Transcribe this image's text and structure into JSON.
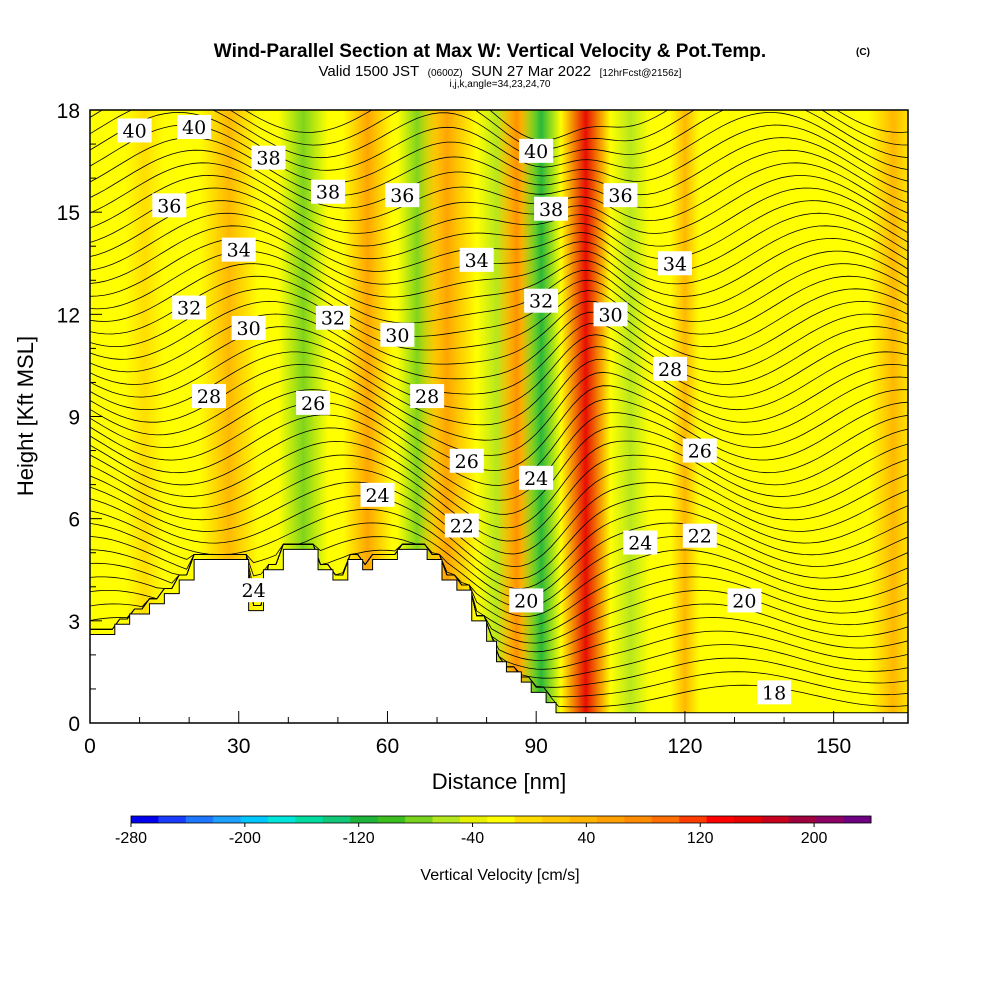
{
  "chart_data": {
    "type": "heatmap",
    "title": "Wind-Parallel Section at Max W: Vertical Velocity & Pot.Temp.",
    "title_mark": "(C)",
    "subtitle_pre": "Valid 1500 JST",
    "subtitle_utc": "(0600Z)",
    "subtitle_post": "SUN 27 Mar 2022",
    "subtitle_fcst": "[12hrFcst@2156z]",
    "subtitle2": "i,j,k,angle=34,23,24,70",
    "xlabel": "Distance [nm]",
    "ylabel": "Height [Kft MSL]",
    "xlim": [
      0,
      165
    ],
    "ylim": [
      0,
      18
    ],
    "x_ticks": [
      0,
      30,
      60,
      90,
      120,
      150
    ],
    "y_ticks": [
      0,
      3,
      6,
      9,
      12,
      15,
      18
    ],
    "colorbar": {
      "label": "Vertical Velocity [cm/s]",
      "range": [
        -280,
        240
      ],
      "tick_values": [
        -280,
        -200,
        -120,
        -40,
        40,
        120,
        200
      ],
      "tick_labels": [
        "-280",
        "-200",
        "-120",
        "-40",
        "40",
        "120",
        "200"
      ],
      "colors": [
        "#0000f0",
        "#1a3cff",
        "#1e78ff",
        "#1ea0ff",
        "#00c8ff",
        "#00e6dc",
        "#00dca0",
        "#10c878",
        "#1eb43c",
        "#3cbe1e",
        "#78d21e",
        "#b4e61e",
        "#e6f000",
        "#ffff00",
        "#ffdc00",
        "#ffc800",
        "#ffb400",
        "#ffa000",
        "#ff8c00",
        "#ff6e00",
        "#ff3c00",
        "#ff0000",
        "#e60000",
        "#c8001e",
        "#a0003c",
        "#8c0064",
        "#6e0082"
      ]
    },
    "terrain": [
      [
        0,
        2.6
      ],
      [
        5,
        2.6
      ],
      [
        5,
        2.9
      ],
      [
        8,
        2.9
      ],
      [
        8,
        3.2
      ],
      [
        12,
        3.2
      ],
      [
        12,
        3.5
      ],
      [
        15,
        3.5
      ],
      [
        15,
        3.8
      ],
      [
        18,
        3.8
      ],
      [
        18,
        4.2
      ],
      [
        21,
        4.2
      ],
      [
        21,
        4.8
      ],
      [
        32,
        4.8
      ],
      [
        32,
        3.3
      ],
      [
        35,
        3.3
      ],
      [
        35,
        4.5
      ],
      [
        39,
        4.5
      ],
      [
        39,
        5.1
      ],
      [
        46,
        5.1
      ],
      [
        46,
        4.5
      ],
      [
        49,
        4.5
      ],
      [
        49,
        4.2
      ],
      [
        52,
        4.2
      ],
      [
        52,
        4.8
      ],
      [
        55,
        4.8
      ],
      [
        55,
        4.5
      ],
      [
        57,
        4.5
      ],
      [
        57,
        4.8
      ],
      [
        62,
        4.8
      ],
      [
        62,
        5.1
      ],
      [
        68,
        5.1
      ],
      [
        68,
        4.8
      ],
      [
        71,
        4.8
      ],
      [
        71,
        4.2
      ],
      [
        74,
        4.2
      ],
      [
        74,
        3.9
      ],
      [
        77,
        3.9
      ],
      [
        77,
        3.0
      ],
      [
        80,
        3.0
      ],
      [
        80,
        2.4
      ],
      [
        82,
        2.4
      ],
      [
        82,
        1.8
      ],
      [
        84,
        1.8
      ],
      [
        84,
        1.5
      ],
      [
        87,
        1.5
      ],
      [
        87,
        1.2
      ],
      [
        89,
        1.2
      ],
      [
        89,
        0.9
      ],
      [
        92,
        0.9
      ],
      [
        92,
        0.6
      ],
      [
        94,
        0.6
      ],
      [
        94,
        0.3
      ],
      [
        165,
        0.3
      ]
    ],
    "vertical_velocity_bands": [
      {
        "x": 3,
        "w": 4,
        "v": -25
      },
      {
        "x": 11,
        "w": 4,
        "v": -10
      },
      {
        "x": 28,
        "w": 6,
        "v": 45
      },
      {
        "x": 43,
        "w": 5,
        "v": -70
      },
      {
        "x": 56,
        "w": 5,
        "v": 50
      },
      {
        "x": 66,
        "w": 4,
        "v": -85
      },
      {
        "x": 72,
        "w": 6,
        "v": 60
      },
      {
        "x": 82,
        "w": 4,
        "v": -50
      },
      {
        "x": 86,
        "w": 4,
        "v": 70
      },
      {
        "x": 91,
        "w": 4,
        "v": -110
      },
      {
        "x": 100,
        "w": 5,
        "v": 150
      },
      {
        "x": 109,
        "w": 4,
        "v": -55
      },
      {
        "x": 120,
        "w": 3,
        "v": 40
      },
      {
        "x": 130,
        "w": 3,
        "v": -25
      },
      {
        "x": 162,
        "w": 5,
        "v": 30
      }
    ],
    "potential_temperature_labels": [
      {
        "value": "40",
        "x": 9,
        "y": 17.4
      },
      {
        "value": "40",
        "x": 21,
        "y": 17.5
      },
      {
        "value": "40",
        "x": 90,
        "y": 16.8
      },
      {
        "value": "38",
        "x": 36,
        "y": 16.6
      },
      {
        "value": "38",
        "x": 48,
        "y": 15.6
      },
      {
        "value": "38",
        "x": 93,
        "y": 15.1
      },
      {
        "value": "36",
        "x": 16,
        "y": 15.2
      },
      {
        "value": "36",
        "x": 63,
        "y": 15.5
      },
      {
        "value": "36",
        "x": 107,
        "y": 15.5
      },
      {
        "value": "34",
        "x": 30,
        "y": 13.9
      },
      {
        "value": "34",
        "x": 78,
        "y": 13.6
      },
      {
        "value": "34",
        "x": 118,
        "y": 13.5
      },
      {
        "value": "32",
        "x": 20,
        "y": 12.2
      },
      {
        "value": "32",
        "x": 49,
        "y": 11.9
      },
      {
        "value": "32",
        "x": 91,
        "y": 12.4
      },
      {
        "value": "30",
        "x": 32,
        "y": 11.6
      },
      {
        "value": "30",
        "x": 62,
        "y": 11.4
      },
      {
        "value": "30",
        "x": 105,
        "y": 12.0
      },
      {
        "value": "28",
        "x": 24,
        "y": 9.6
      },
      {
        "value": "28",
        "x": 68,
        "y": 9.6
      },
      {
        "value": "28",
        "x": 117,
        "y": 10.4
      },
      {
        "value": "26",
        "x": 45,
        "y": 9.4
      },
      {
        "value": "26",
        "x": 76,
        "y": 7.7
      },
      {
        "value": "26",
        "x": 123,
        "y": 8.0
      },
      {
        "value": "24",
        "x": 58,
        "y": 6.7
      },
      {
        "value": "24",
        "x": 90,
        "y": 7.2
      },
      {
        "value": "24",
        "x": 111,
        "y": 5.3
      },
      {
        "value": "24",
        "x": 33,
        "y": 3.9
      },
      {
        "value": "22",
        "x": 75,
        "y": 5.8
      },
      {
        "value": "22",
        "x": 123,
        "y": 5.5
      },
      {
        "value": "20",
        "x": 88,
        "y": 3.6
      },
      {
        "value": "20",
        "x": 132,
        "y": 3.6
      },
      {
        "value": "18",
        "x": 138,
        "y": 0.9
      }
    ]
  }
}
